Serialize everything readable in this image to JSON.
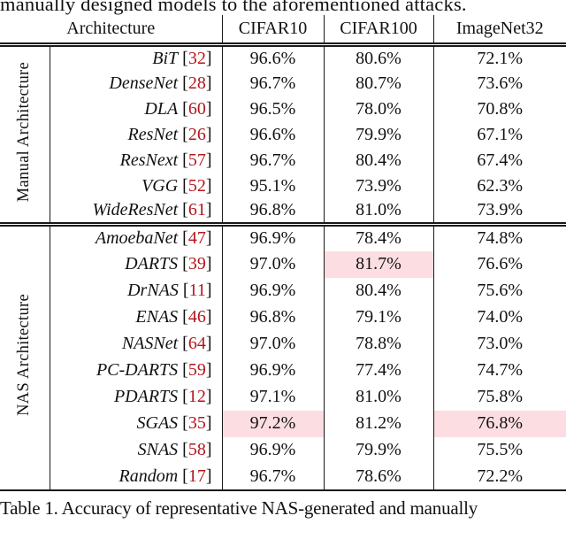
{
  "page": {
    "top_text": "manually designed models to the aforementioned attacks.",
    "caption": "Table 1. Accuracy of representative NAS-generated and manually"
  },
  "table": {
    "headers": {
      "architecture": "Architecture",
      "cifar10": "CIFAR10",
      "cifar100": "CIFAR100",
      "imagenet32": "ImageNet32"
    },
    "cite_open": "[",
    "cite_close": "]",
    "colors": {
      "citation_red": "#b3151c",
      "highlight_pink": "#fcdee2"
    },
    "highlighted_cells": [
      {
        "row": "DARTS",
        "column": "CIFAR100"
      },
      {
        "row": "SGAS",
        "column": "CIFAR10"
      },
      {
        "row": "SGAS",
        "column": "ImageNet32"
      }
    ],
    "sections": [
      {
        "label": "Manual Architecture",
        "rows": [
          {
            "name": "BiT",
            "cite": "32",
            "cifar10": "96.6%",
            "cifar100": "80.6%",
            "imagenet32": "72.1%"
          },
          {
            "name": "DenseNet",
            "cite": "28",
            "cifar10": "96.7%",
            "cifar100": "80.7%",
            "imagenet32": "73.6%"
          },
          {
            "name": "DLA",
            "cite": "60",
            "cifar10": "96.5%",
            "cifar100": "78.0%",
            "imagenet32": "70.8%"
          },
          {
            "name": "ResNet",
            "cite": "26",
            "cifar10": "96.6%",
            "cifar100": "79.9%",
            "imagenet32": "67.1%"
          },
          {
            "name": "ResNext",
            "cite": "57",
            "cifar10": "96.7%",
            "cifar100": "80.4%",
            "imagenet32": "67.4%"
          },
          {
            "name": "VGG",
            "cite": "52",
            "cifar10": "95.1%",
            "cifar100": "73.9%",
            "imagenet32": "62.3%"
          },
          {
            "name": "WideResNet",
            "cite": "61",
            "cifar10": "96.8%",
            "cifar100": "81.0%",
            "imagenet32": "73.9%"
          }
        ]
      },
      {
        "label": "NAS Architecture",
        "rows": [
          {
            "name": "AmoebaNet",
            "cite": "47",
            "cifar10": "96.9%",
            "cifar100": "78.4%",
            "imagenet32": "74.8%"
          },
          {
            "name": "DARTS",
            "cite": "39",
            "cifar10": "97.0%",
            "cifar100": "81.7%",
            "imagenet32": "76.6%"
          },
          {
            "name": "DrNAS",
            "cite": "11",
            "cifar10": "96.9%",
            "cifar100": "80.4%",
            "imagenet32": "75.6%"
          },
          {
            "name": "ENAS",
            "cite": "46",
            "cifar10": "96.8%",
            "cifar100": "79.1%",
            "imagenet32": "74.0%"
          },
          {
            "name": "NASNet",
            "cite": "64",
            "cifar10": "97.0%",
            "cifar100": "78.8%",
            "imagenet32": "73.0%"
          },
          {
            "name": "PC-DARTS",
            "cite": "59",
            "cifar10": "96.9%",
            "cifar100": "77.4%",
            "imagenet32": "74.7%"
          },
          {
            "name": "PDARTS",
            "cite": "12",
            "cifar10": "97.1%",
            "cifar100": "81.0%",
            "imagenet32": "75.8%"
          },
          {
            "name": "SGAS",
            "cite": "35",
            "cifar10": "97.2%",
            "cifar100": "81.2%",
            "imagenet32": "76.8%"
          },
          {
            "name": "SNAS",
            "cite": "58",
            "cifar10": "96.9%",
            "cifar100": "79.9%",
            "imagenet32": "75.5%"
          },
          {
            "name": "Random",
            "cite": "17",
            "cifar10": "96.7%",
            "cifar100": "78.6%",
            "imagenet32": "72.2%"
          }
        ]
      }
    ]
  }
}
